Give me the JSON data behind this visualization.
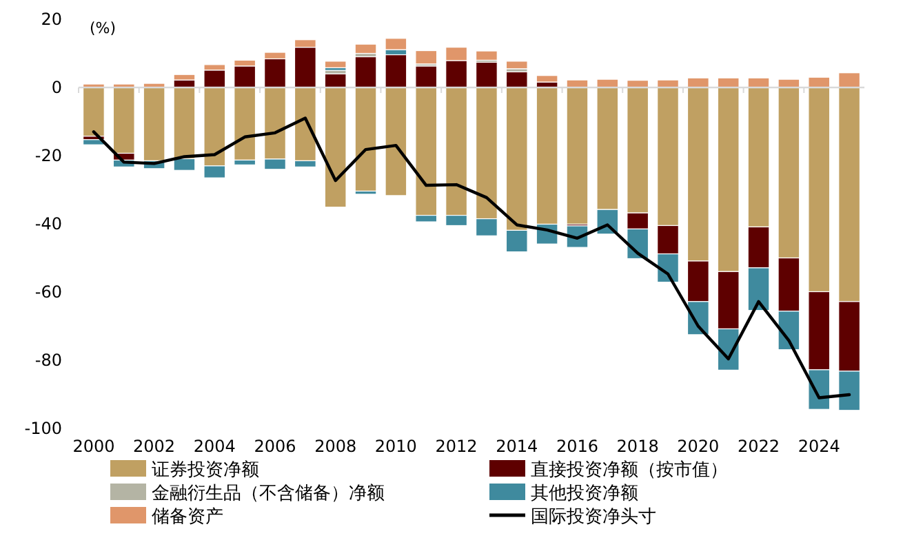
{
  "chart_data": {
    "type": "bar",
    "stacked": true,
    "ylabel": "(%)",
    "categories": [
      "2000",
      null,
      "2002",
      null,
      "2004",
      null,
      "2006",
      null,
      "2008",
      null,
      "2010",
      null,
      "2012",
      null,
      "2014",
      null,
      "2016",
      null,
      "2018",
      null,
      "2020",
      null,
      "2022",
      null,
      "2024",
      null
    ],
    "ylim": [
      -100,
      20
    ],
    "yticks": [
      20,
      0,
      -20,
      -40,
      -60,
      -80,
      -100
    ],
    "legend": "bottom",
    "series": [
      {
        "name": "证券投资净额",
        "color": "#c0a062",
        "values": [
          -14.3,
          -19.3,
          -21.5,
          -20.9,
          -23,
          -21.3,
          -21,
          -21.5,
          -35.1,
          -30.4,
          -31.7,
          -37.5,
          -37.5,
          -38.5,
          -41.9,
          -40.1,
          -40.1,
          -35.8,
          -36.8,
          -40.5,
          -50.9,
          -54,
          -40.9,
          -50,
          -59.9,
          -62.8
        ]
      },
      {
        "name": "直接投资净额（按市值）",
        "color": "#5e0000",
        "values": [
          -1,
          -2,
          0,
          2.2,
          5.1,
          6.3,
          8.4,
          11.8,
          4.0,
          9.0,
          9.6,
          6.3,
          7.9,
          7.4,
          4.6,
          1.6,
          -0.5,
          0,
          -4.7,
          -8.3,
          -11.9,
          -16.8,
          -12,
          -15.6,
          -22.9,
          -20.4
        ]
      },
      {
        "name": "金融衍生品（不含储备）净额",
        "color": "#b4b4a4",
        "values": [
          0,
          0,
          0,
          0,
          0,
          0,
          0,
          0,
          1.0,
          1.0,
          0,
          0.6,
          0,
          0.6,
          0.9,
          null,
          0,
          0,
          0,
          0,
          0,
          0,
          0,
          0,
          0,
          0
        ]
      },
      {
        "name": "其他投资净额",
        "color": "#3f8a9e",
        "values": [
          -1.5,
          -2,
          -2.3,
          -3.4,
          -3.5,
          -1.4,
          -3,
          -1.8,
          0.8,
          -0.9,
          1.5,
          -1.9,
          -3,
          -5,
          -6.3,
          -5.8,
          -6.3,
          -7.2,
          -8.7,
          -8.3,
          -9.7,
          -12.1,
          -12.5,
          -11.3,
          -11.6,
          -11.5
        ]
      },
      {
        "name": "储备资产",
        "color": "#e0966a",
        "values": [
          1,
          1,
          1.2,
          1.6,
          1.6,
          1.7,
          1.9,
          2.2,
          1.9,
          2.7,
          3.3,
          3.9,
          3.9,
          2.7,
          2.2,
          1.9,
          2.2,
          2.4,
          2.1,
          2.2,
          2.8,
          2.8,
          2.8,
          2.4,
          3.0,
          4.3
        ]
      },
      {
        "name": "国际投资净头寸",
        "type": "line",
        "color": "#000000",
        "values": [
          -13,
          -21.9,
          -22.3,
          -20.3,
          -19.7,
          -14.5,
          -13.3,
          -9,
          -27.3,
          -18.2,
          -17,
          -28.7,
          -28.5,
          -32.3,
          -40.3,
          -41.8,
          -44.2,
          -40.3,
          -48.6,
          -54.7,
          -70,
          -79.6,
          -62.8,
          -74.2,
          -91,
          -90.1
        ]
      }
    ]
  }
}
